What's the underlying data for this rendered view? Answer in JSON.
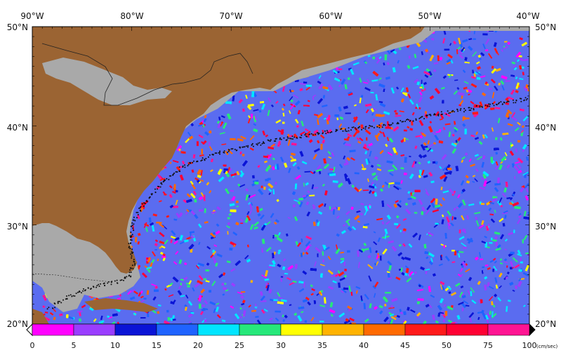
{
  "map": {
    "lon_labels": [
      "90°W",
      "80°W",
      "70°W",
      "60°W",
      "50°W",
      "40°W"
    ],
    "lat_labels": [
      "50°N",
      "40°N",
      "30°N",
      "20°N"
    ],
    "land_color": "#9b6433",
    "shelf_color": "#a9a9a9",
    "border_color": "#222222"
  },
  "colorbar": {
    "ticks": [
      "0",
      "5",
      "10",
      "15",
      "20",
      "25",
      "30",
      "35",
      "40",
      "45",
      "50",
      "75",
      "100"
    ],
    "unit": "(cm/sec)",
    "colors": [
      "#ff00ff",
      "#9a3dff",
      "#0a14d6",
      "#1f63ff",
      "#00e5ff",
      "#26e87a",
      "#ffff00",
      "#ffb300",
      "#ff6a00",
      "#ff1a1a",
      "#ff0033",
      "#ff1493"
    ]
  }
}
